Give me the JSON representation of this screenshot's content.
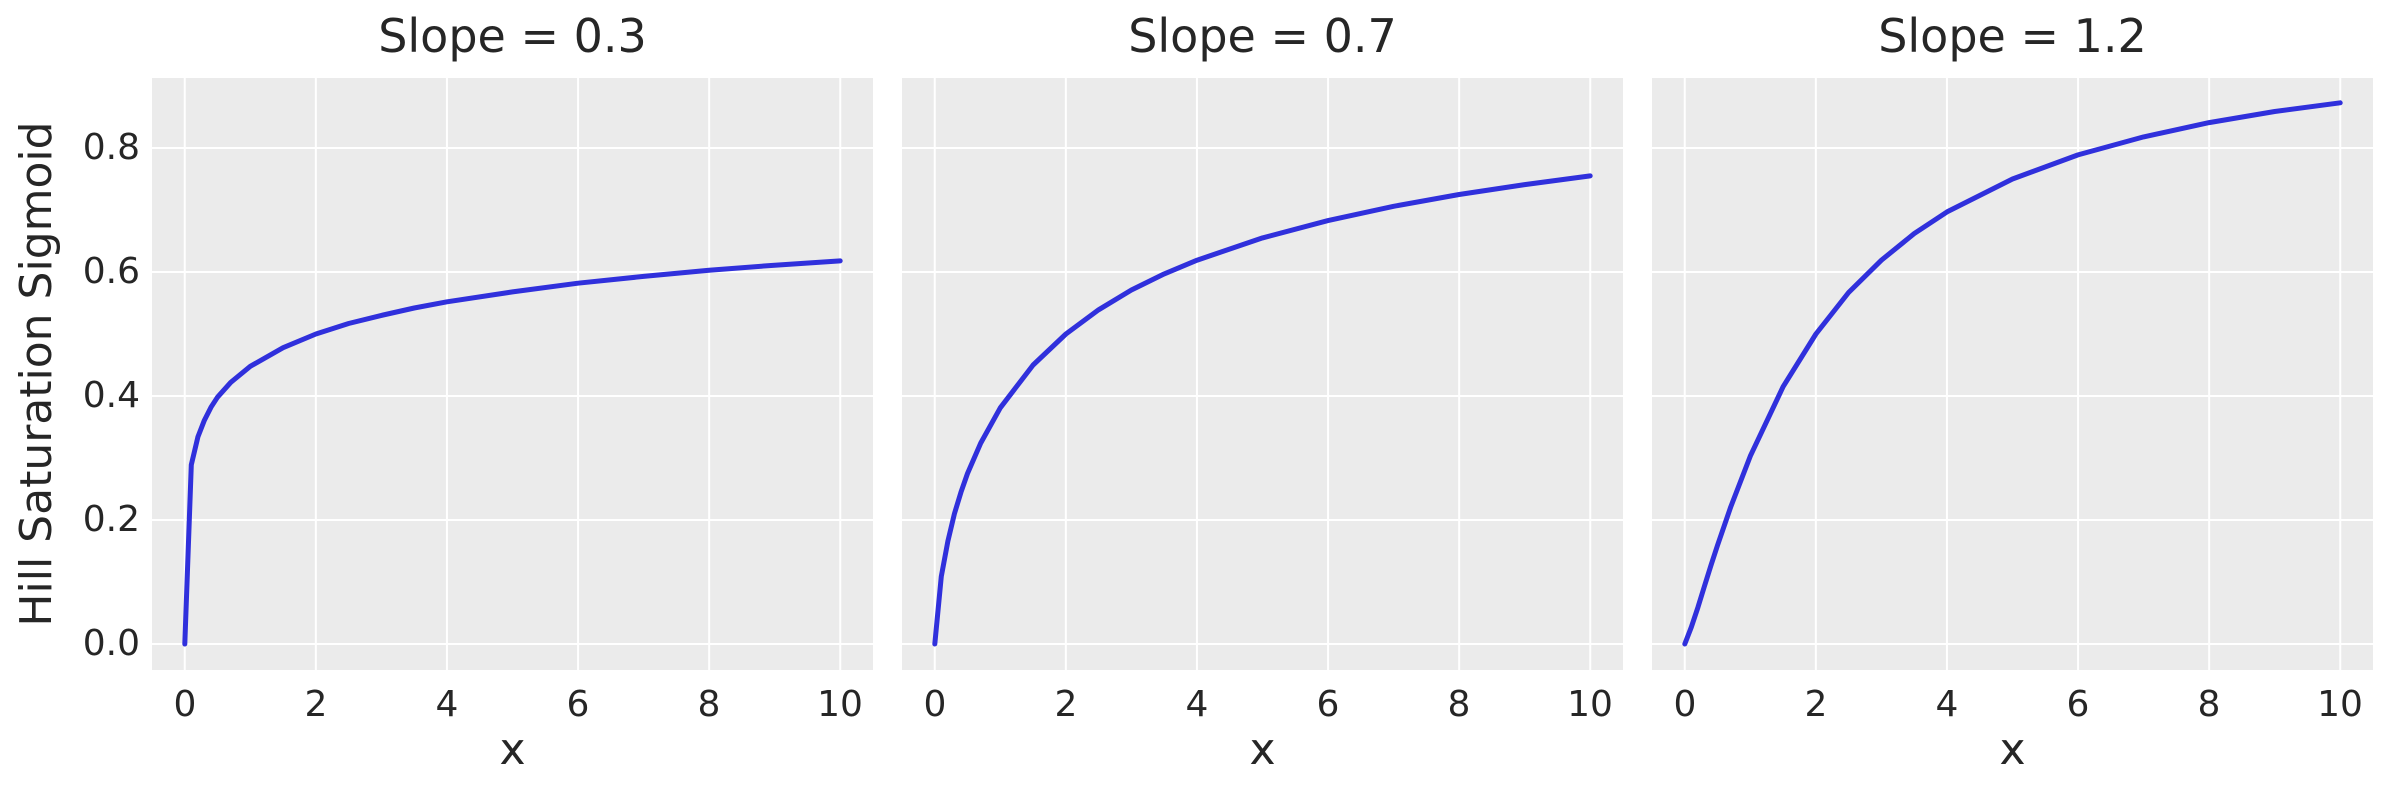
{
  "style": {
    "figure_background": "#ffffff",
    "panel_background": "#ebebeb",
    "grid_color": "#ffffff",
    "line_color": "#3030dc",
    "text_color": "#262626"
  },
  "chart_data": [
    {
      "type": "line",
      "title": "Slope = 0.3",
      "slope": 0.3,
      "xlabel": "x",
      "ylabel": "Hill Saturation Sigmoid",
      "xlim": [
        -0.5,
        10.5
      ],
      "ylim": [
        -0.042,
        0.913
      ],
      "grid": true,
      "legend": "none",
      "xticks": [
        0,
        2,
        4,
        6,
        8,
        10
      ],
      "xtick_labels": [
        "0",
        "2",
        "4",
        "6",
        "8",
        "10"
      ],
      "yticks": [
        0.0,
        0.2,
        0.4,
        0.6,
        0.8
      ],
      "ytick_labels": [
        "0.0",
        "0.2",
        "0.4",
        "0.6",
        "0.8"
      ],
      "x": [
        0,
        0.1,
        0.2,
        0.3,
        0.4,
        0.5,
        0.7,
        1,
        1.5,
        2,
        2.5,
        3,
        3.5,
        4,
        5,
        6,
        7,
        8,
        9,
        10
      ],
      "y": [
        0,
        0.289,
        0.334,
        0.361,
        0.382,
        0.398,
        0.422,
        0.448,
        0.478,
        0.5,
        0.517,
        0.53,
        0.542,
        0.552,
        0.568,
        0.582,
        0.593,
        0.603,
        0.611,
        0.618
      ]
    },
    {
      "type": "line",
      "title": "Slope = 0.7",
      "slope": 0.7,
      "xlabel": "x",
      "ylabel": "",
      "xlim": [
        -0.5,
        10.5
      ],
      "ylim": [
        -0.042,
        0.913
      ],
      "grid": true,
      "legend": "none",
      "xticks": [
        0,
        2,
        4,
        6,
        8,
        10
      ],
      "xtick_labels": [
        "0",
        "2",
        "4",
        "6",
        "8",
        "10"
      ],
      "yticks": [
        0.0,
        0.2,
        0.4,
        0.6,
        0.8
      ],
      "ytick_labels": [
        "0.0",
        "0.2",
        "0.4",
        "0.6",
        "0.8"
      ],
      "x": [
        0,
        0.1,
        0.2,
        0.3,
        0.4,
        0.5,
        0.7,
        1,
        1.5,
        2,
        2.5,
        3,
        3.5,
        4,
        5,
        6,
        7,
        8,
        9,
        10
      ],
      "y": [
        0,
        0.109,
        0.166,
        0.21,
        0.245,
        0.275,
        0.324,
        0.381,
        0.45,
        0.5,
        0.539,
        0.571,
        0.597,
        0.619,
        0.655,
        0.683,
        0.706,
        0.725,
        0.741,
        0.755
      ]
    },
    {
      "type": "line",
      "title": "Slope = 1.2",
      "slope": 1.2,
      "xlabel": "x",
      "ylabel": "",
      "xlim": [
        -0.5,
        10.5
      ],
      "ylim": [
        -0.042,
        0.913
      ],
      "grid": true,
      "legend": "none",
      "xticks": [
        0,
        2,
        4,
        6,
        8,
        10
      ],
      "xtick_labels": [
        "0",
        "2",
        "4",
        "6",
        "8",
        "10"
      ],
      "yticks": [
        0.0,
        0.2,
        0.4,
        0.6,
        0.8
      ],
      "ytick_labels": [
        "0.0",
        "0.2",
        "0.4",
        "0.6",
        "0.8"
      ],
      "x": [
        0,
        0.1,
        0.2,
        0.3,
        0.4,
        0.5,
        0.7,
        1,
        1.5,
        2,
        2.5,
        3,
        3.5,
        4,
        5,
        6,
        7,
        8,
        9,
        10
      ],
      "y": [
        0,
        0.027,
        0.059,
        0.093,
        0.127,
        0.159,
        0.221,
        0.303,
        0.415,
        0.5,
        0.567,
        0.619,
        0.662,
        0.697,
        0.75,
        0.789,
        0.818,
        0.841,
        0.859,
        0.873
      ]
    }
  ]
}
